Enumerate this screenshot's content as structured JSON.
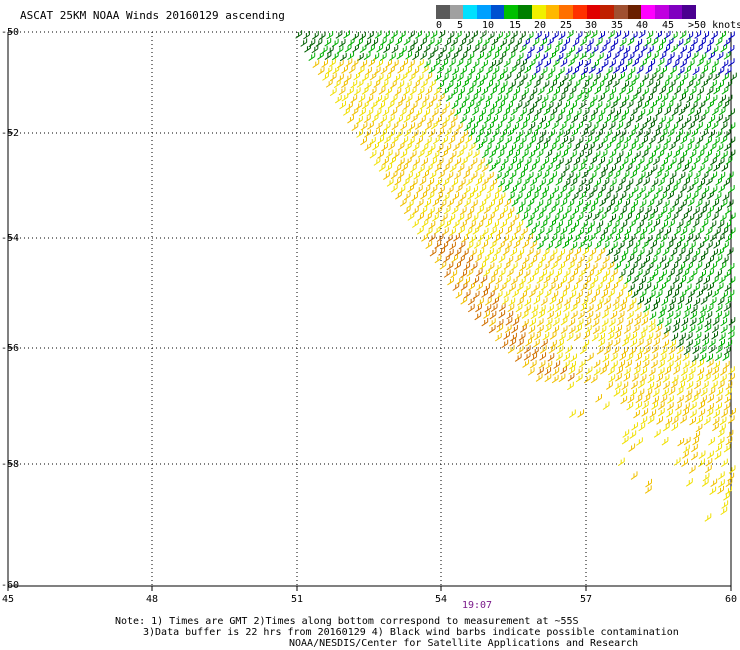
{
  "title": "ASCAT 25KM NOAA Winds 20160129 ascending",
  "legend": {
    "colors": [
      "#5a5a5a",
      "#a0a0a0",
      "#00e0ff",
      "#00a0ff",
      "#0050d0",
      "#00c000",
      "#008000",
      "#f0f000",
      "#ffb800",
      "#ff7000",
      "#ff3000",
      "#e00000",
      "#c02000",
      "#a05030",
      "#6a2000",
      "#ff00ff",
      "#c000e0",
      "#8000c0",
      "#4a0090"
    ],
    "labels": [
      "0",
      "5",
      "10",
      "15",
      "20",
      "25",
      "30",
      "35",
      "40",
      "45",
      ">50 knots"
    ]
  },
  "map": {
    "lon_range": [
      45,
      60
    ],
    "lat_range": [
      -60,
      -50
    ],
    "y_ticks": [
      "-50",
      "-52",
      "-54",
      "-56",
      "-58",
      "-60"
    ],
    "x_ticks": [
      "45",
      "48",
      "51",
      "54",
      "57",
      "60"
    ],
    "pass_time": "19:07"
  },
  "notes": {
    "line1": "Note: 1) Times are GMT 2)Times along bottom correspond to measurement at ~55S",
    "line2": "3)Data buffer is 22 hrs from 20160129 4) Black wind barbs indicate possible contamination",
    "line3": "NOAA/NESDIS/Center for Satellite Applications and Research"
  },
  "wind_colors": {
    "light": "#f0e000",
    "medium": "#f0c000",
    "orange": "#d07000",
    "green": "#00b000",
    "dark_green": "#006000",
    "blue": "#0000c0"
  }
}
